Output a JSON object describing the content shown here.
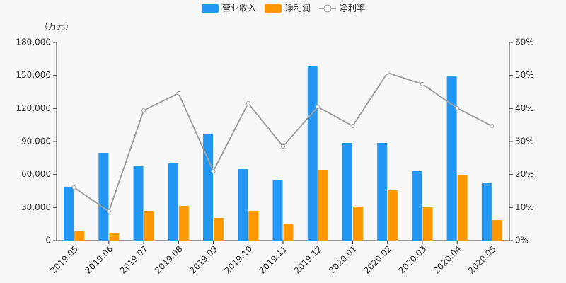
{
  "chart_data": {
    "type": "bar",
    "unit_label": "（万元）",
    "categories": [
      "2019.05",
      "2019.06",
      "2019.07",
      "2019.08",
      "2019.09",
      "2019.10",
      "2019.11",
      "2019.12",
      "2020.01",
      "2020.02",
      "2020.03",
      "2020.04",
      "2020.05"
    ],
    "series": [
      {
        "name": "营业收入",
        "type": "bar",
        "color": "#2196f3",
        "values": [
          48900,
          79700,
          67500,
          70100,
          97100,
          64900,
          54600,
          158800,
          88700,
          88700,
          63000,
          149100,
          52700
        ]
      },
      {
        "name": "净利润",
        "type": "bar",
        "color": "#ff9800",
        "values": [
          8400,
          7100,
          27000,
          31500,
          20600,
          27000,
          15400,
          64300,
          30900,
          45600,
          30200,
          59800,
          18600
        ]
      },
      {
        "name": "净利率",
        "type": "line",
        "axis": "y2",
        "color": "#a0a0a0",
        "values": [
          16.1,
          8.8,
          39.4,
          44.6,
          21.0,
          41.6,
          28.5,
          40.5,
          34.7,
          50.8,
          47.4,
          40.1,
          34.7
        ]
      }
    ],
    "ylim": [
      0,
      180000
    ],
    "yticks": [
      0,
      {
        "value": 30000,
        "label": "30,000"
      },
      {
        "value": 60000,
        "label": "60,000"
      },
      {
        "value": 90000,
        "label": "90,000"
      },
      {
        "value": 120000,
        "label": "120,000"
      },
      {
        "value": 150000,
        "label": "150,000"
      },
      {
        "value": 180000,
        "label": "180,000"
      }
    ],
    "y2lim": [
      0,
      60
    ],
    "y2ticks": [
      {
        "value": 0,
        "label": "0%"
      },
      {
        "value": 10,
        "label": "10%"
      },
      {
        "value": 20,
        "label": "20%"
      },
      {
        "value": 30,
        "label": "30%"
      },
      {
        "value": 40,
        "label": "40%"
      },
      {
        "value": 50,
        "label": "50%"
      },
      {
        "value": 60,
        "label": "60%"
      }
    ],
    "legend": "top"
  }
}
